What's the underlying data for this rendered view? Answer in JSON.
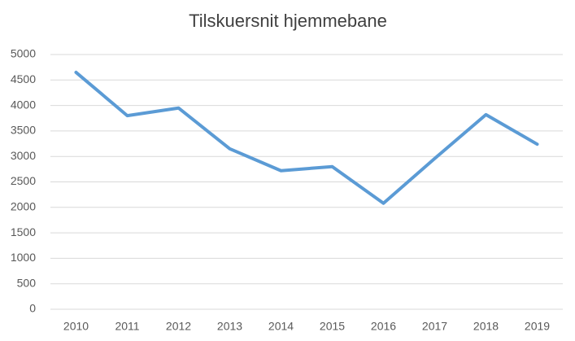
{
  "chart_data": {
    "type": "line",
    "title": "Tilskuersnit hjemmebane",
    "categories": [
      "2010",
      "2011",
      "2012",
      "2013",
      "2014",
      "2015",
      "2016",
      "2017",
      "2018",
      "2019"
    ],
    "values": [
      4650,
      3800,
      3950,
      3150,
      2720,
      2800,
      2080,
      2960,
      3820,
      3240
    ],
    "color": "#5b9bd5",
    "ylim": [
      0,
      5000
    ],
    "yticks": [
      0,
      500,
      1000,
      1500,
      2000,
      2500,
      3000,
      3500,
      4000,
      4500,
      5000
    ],
    "grid": true
  }
}
